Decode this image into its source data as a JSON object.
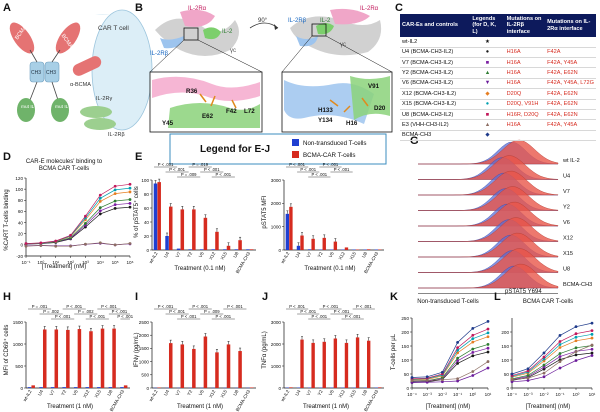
{
  "panel_letters": {
    "A": "A",
    "B": "B",
    "C": "C",
    "D": "D",
    "E": "E",
    "F": "F",
    "G": "G",
    "H": "H",
    "I": "I",
    "J": "J",
    "K": "K",
    "L": "L"
  },
  "panel_a": {
    "cart_label": "CAR T cell",
    "bcma1": "BCMA",
    "bcma2": "BCMA",
    "ch1": "CH3",
    "ch2": "CH3",
    "alpha_bcma": "α-BCMA",
    "il2rg": "IL-2Rγ",
    "il2rb": "IL-2Rβ",
    "mut1": "mut IL-2",
    "mut2": "mut IL-2"
  },
  "panel_b": {
    "il2ra_l": "IL-2Rα",
    "il2_l": "IL-2",
    "il2rb_l": "IL-2Rβ",
    "gc_l": "γc",
    "rot": "90°",
    "il2rb_r": "IL-2Rβ",
    "il2_r": "IL-2",
    "gc_r": "γc",
    "il2ra_r": "IL-2Rα",
    "res_left": [
      "R36",
      "F42",
      "L72",
      "Y45",
      "E62"
    ],
    "res_right": [
      "V91",
      "D20",
      "H133",
      "Y134",
      "H16"
    ]
  },
  "legend_ej": {
    "title": "Legend for E-J",
    "items": [
      {
        "label": "Non-transduced T-cells",
        "color": "#1f3fd1"
      },
      {
        "label": "BCMA-CAR T-cells",
        "color": "#d62b1f"
      }
    ]
  },
  "table_c": {
    "headers": [
      "CAR-Es and controls",
      "Legends (for D, K, L)",
      "Mutations on IL-2Rβ interface",
      "Mutations on IL-2Rα interface"
    ],
    "rows": [
      {
        "name": "wt-IL2",
        "mb": "",
        "ma": "",
        "sym": "★",
        "color": "#111111"
      },
      {
        "name": "U4 (BCMA-CH3-IL2)",
        "mb": "H16A",
        "ma": "F42A",
        "sym": "●",
        "color": "#1a1a1a"
      },
      {
        "name": "V7 (BCMA-CH3-IL2)",
        "mb": "H16A",
        "ma": "F42A, Y45A",
        "sym": "■",
        "color": "#7b1fa2"
      },
      {
        "name": "Y2 (BCMA-CH3-IL2)",
        "mb": "H16A",
        "ma": "F42A, E62N",
        "sym": "▲",
        "color": "#2e7d32"
      },
      {
        "name": "V6 (BCMA-CH3-IL2)",
        "mb": "H16A",
        "ma": "F42A, Y45A, L72G",
        "sym": "▼",
        "color": "#6a1b9a"
      },
      {
        "name": "X12 (BCMA-CH3-IL2)",
        "mb": "D20Q",
        "ma": "F42A, E62N",
        "sym": "◆",
        "color": "#e67e22"
      },
      {
        "name": "X15 (BCMA-CH3-IL2)",
        "mb": "D20Q, V91H",
        "ma": "F42A, E62N",
        "sym": "●",
        "color": "#00a0b0"
      },
      {
        "name": "U8 (BCMA-CH3-IL2)",
        "mb": "H16R, D20Q",
        "ma": "F42A, E62N",
        "sym": "■",
        "color": "#c2185b"
      },
      {
        "name": "E3 (VHH-CH3-IL2)",
        "mb": "H16A",
        "ma": "F42A, Y45A",
        "sym": "▲",
        "color": "#8d6e63"
      },
      {
        "name": "BCMA-CH3",
        "mb": "",
        "ma": "",
        "sym": "◆",
        "color": "#1e3a8a"
      }
    ]
  },
  "panel_d": {
    "title1": "CAR-E molecules' binding to",
    "title2": "BCMA CAR T-cells",
    "ylabel": "%CART T-cells binding",
    "xlabel": "[Treatment] (nM)"
  },
  "panel_e": {
    "ylabel": "% of pSTAT5⁺ cells",
    "xlabel": "Treatment (0.1 nM)"
  },
  "panel_f": {
    "ylabel": "pSTAT5 MFI",
    "xlabel": "Treatment (0.1 nM)"
  },
  "panel_g": {
    "xlabel": "pSTAT5 Y694",
    "labels": [
      "wt IL-2",
      "U4",
      "V7",
      "Y2",
      "V6",
      "X12",
      "X15",
      "U8",
      "BCMA-CH3"
    ]
  },
  "panel_h": {
    "ylabel": "MFI of CD69⁺ cells",
    "xlabel": "Treatment (1 nM)"
  },
  "panel_i": {
    "ylabel": "IFNγ (pg/mL)",
    "xlabel": "Treatment (1 nM)"
  },
  "panel_j": {
    "ylabel": "TNFα (pg/mL)",
    "xlabel": "Treatment (1 nM)"
  },
  "panel_k": {
    "title": "Non-transduced T-cells",
    "ylabel": "T-cells per μL",
    "xlabel": "[Treatment] (nM)"
  },
  "panel_l": {
    "title": "BCMA CAR T-cells",
    "xlabel": "[Treatment] (nM)"
  },
  "chart_data": [
    {
      "type": "scatter",
      "id": "D",
      "xlabel": "[Treatment] (nM)",
      "ylabel": "%CART T-cells binding",
      "ylim": [
        -20,
        120
      ],
      "yticks": [
        -20,
        0,
        20,
        40,
        60,
        80,
        100,
        120
      ],
      "xticks": [
        "10⁻¹",
        "10⁰",
        "10¹",
        "10²",
        "10³",
        "10⁴",
        "10⁵",
        "10⁶"
      ],
      "x": [
        -1,
        0,
        1,
        2,
        3,
        4,
        5,
        6
      ],
      "curve": [
        2,
        3,
        6,
        15,
        45,
        78,
        92,
        95
      ],
      "flat": [
        -2,
        -1,
        -2,
        -2,
        1,
        3,
        0,
        2
      ]
    },
    {
      "type": "bar",
      "id": "E",
      "categories": [
        "wt-IL2",
        "U4",
        "V7",
        "Y2",
        "V6",
        "X12",
        "X15",
        "U8",
        "BCMA-CH3"
      ],
      "ylim": [
        0,
        100
      ],
      "yticks": [
        0,
        20,
        40,
        60,
        80,
        100
      ],
      "series": [
        {
          "name": "Non-transduced T-cells",
          "values": [
            95,
            20,
            2,
            1,
            1,
            1,
            1,
            1,
            1
          ]
        },
        {
          "name": "BCMA-CAR T-cells",
          "values": [
            97,
            62,
            58,
            58,
            46,
            26,
            6,
            14,
            1
          ]
        }
      ],
      "pvals": [
        "P < .001",
        "P < .001",
        "P = .009",
        "P = .019",
        "P < .001",
        "P < .001"
      ]
    },
    {
      "type": "bar",
      "id": "F",
      "categories": [
        "wt-IL2",
        "U4",
        "V7",
        "Y2",
        "V6",
        "X12",
        "X15",
        "U8",
        "BCMA-CH3"
      ],
      "ylim": [
        0,
        3000
      ],
      "yticks": [
        0,
        1000,
        2000,
        3000
      ],
      "series": [
        {
          "name": "Non-transduced T-cells",
          "values": [
            1550,
            180,
            30,
            20,
            20,
            20,
            20,
            20,
            20
          ]
        },
        {
          "name": "BCMA-CAR T-cells",
          "values": [
            1850,
            620,
            480,
            520,
            360,
            110,
            20,
            30,
            20
          ]
        }
      ],
      "pvals": [
        "P < .001",
        "P < .001",
        "P < .001",
        "P < .001",
        "P < .001"
      ]
    },
    {
      "type": "bar",
      "id": "H",
      "categories": [
        "wt-IL2",
        "U4",
        "V7",
        "Y2",
        "V6",
        "X12",
        "X15",
        "U8",
        "BCMA-CH3"
      ],
      "ylim": [
        0,
        1500
      ],
      "yticks": [
        0,
        500,
        1000,
        1500
      ],
      "series": [
        {
          "name": "Non-transduced T-cells",
          "values": [
            20,
            20,
            20,
            20,
            20,
            20,
            20,
            20,
            20
          ]
        },
        {
          "name": "BCMA-CAR T-cells",
          "values": [
            60,
            1330,
            1330,
            1320,
            1340,
            1290,
            1350,
            1350,
            60
          ]
        }
      ],
      "pvals": [
        "P = .001",
        "P = .002",
        "P < .001",
        "P < .001",
        "P = .002",
        "P < .001",
        "P < .001",
        "P < .001",
        "P < .001"
      ]
    },
    {
      "type": "bar",
      "id": "I",
      "categories": [
        "wt-IL2",
        "U4",
        "V7",
        "Y2",
        "V6",
        "X12",
        "X15",
        "U8",
        "BCMA-CH3"
      ],
      "ylim": [
        0,
        2500
      ],
      "yticks": [
        0,
        500,
        1000,
        1500,
        2000,
        2500
      ],
      "series": [
        {
          "name": "Non-transduced T-cells",
          "values": [
            10,
            10,
            10,
            10,
            10,
            10,
            10,
            10,
            10
          ]
        },
        {
          "name": "BCMA-CAR T-cells",
          "values": [
            20,
            1700,
            1650,
            1480,
            1950,
            1350,
            1650,
            1400,
            20
          ]
        }
      ],
      "pvals": [
        "P < .001",
        "P < .001",
        "P < .001",
        "P < .001",
        "P = .009",
        "P < .001",
        "P < .001"
      ]
    },
    {
      "type": "bar",
      "id": "J",
      "categories": [
        "wt-IL2",
        "U4",
        "V7",
        "Y2",
        "V6",
        "X12",
        "X15",
        "U8",
        "BCMA-CH3"
      ],
      "ylim": [
        0,
        3000
      ],
      "yticks": [
        0,
        1000,
        2000,
        3000
      ],
      "series": [
        {
          "name": "Non-transduced T-cells",
          "values": [
            20,
            20,
            20,
            20,
            20,
            20,
            20,
            20,
            20
          ]
        },
        {
          "name": "BCMA-CAR T-cells",
          "values": [
            30,
            2200,
            2050,
            2100,
            2250,
            2050,
            2300,
            2150,
            30
          ]
        }
      ],
      "pvals": [
        "P < .001",
        "P < .001",
        "P < .001",
        "P < .001",
        "P < .001",
        "P < .001",
        "P < .001"
      ]
    },
    {
      "type": "scatter",
      "id": "K",
      "title": "Non-transduced T-cells",
      "ylim": [
        0,
        250
      ],
      "yticks": [
        0,
        50,
        100,
        150,
        200,
        250
      ],
      "xticks": [
        "10⁻⁴",
        "10⁻³",
        "10⁻²",
        "10⁻¹",
        "10⁰",
        "10¹"
      ],
      "x": [
        -4,
        -3,
        -2,
        -1,
        0,
        1
      ],
      "curve": [
        30,
        32,
        45,
        130,
        170,
        190
      ],
      "flat": [
        22,
        23,
        25,
        28,
        50,
        80
      ]
    },
    {
      "type": "scatter",
      "id": "L",
      "title": "BCMA CAR T-cells",
      "ylim": [
        0,
        250
      ],
      "yticks": [
        0,
        50,
        100,
        150,
        200
      ],
      "xticks": [
        "10⁻⁴",
        "10⁻³",
        "10⁻²",
        "10⁻¹",
        "10⁰",
        "10¹"
      ],
      "x": [
        -4,
        -3,
        -2,
        -1,
        0,
        1
      ],
      "curve": [
        40,
        55,
        100,
        150,
        175,
        185
      ],
      "flat": [
        25,
        30,
        45,
        80,
        110,
        130
      ]
    }
  ]
}
